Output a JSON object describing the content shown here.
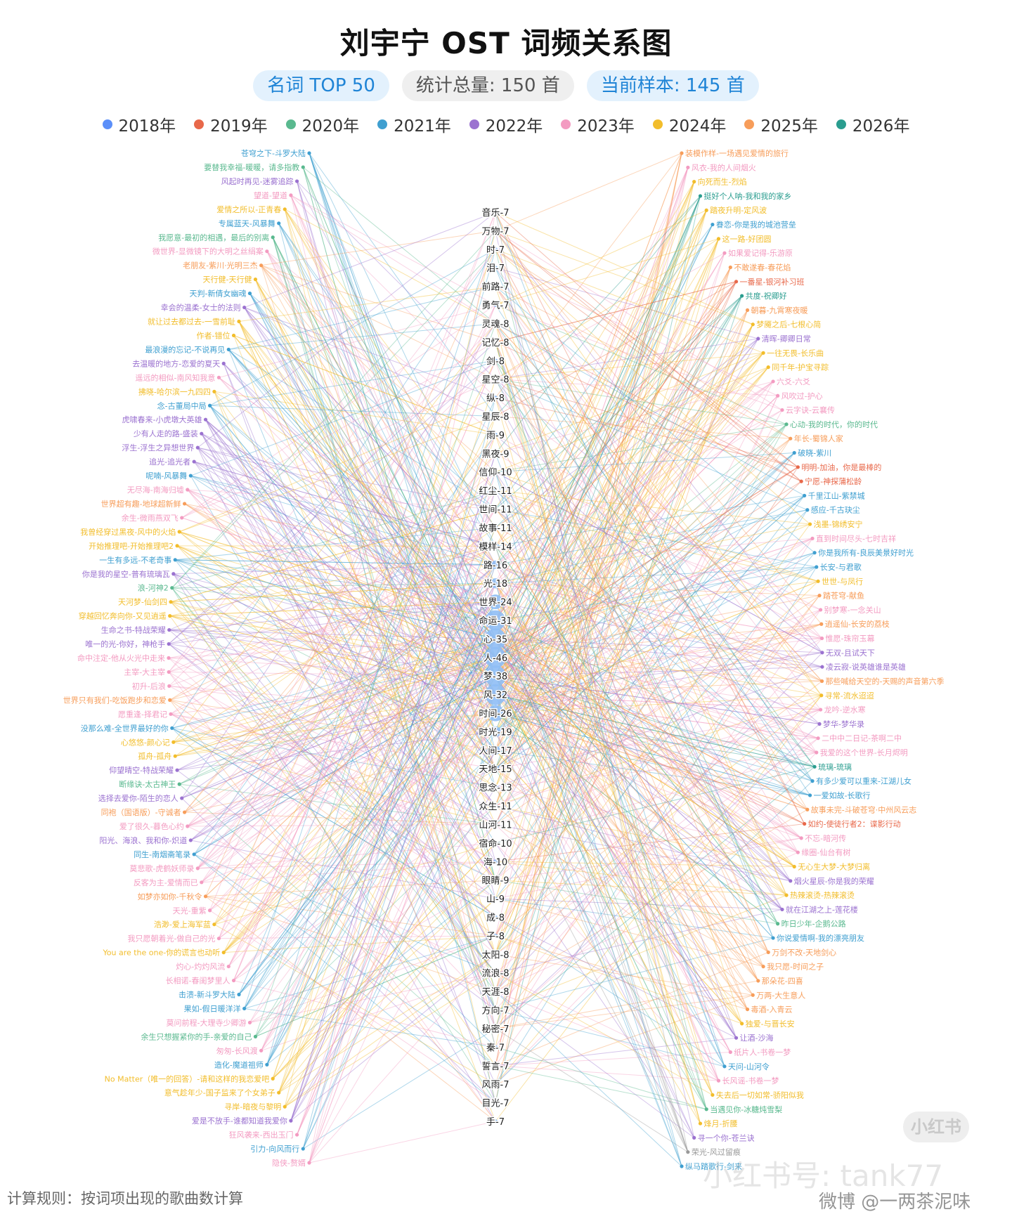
{
  "title": "刘宇宁 OST 词频关系图",
  "pills": {
    "top": "名词 TOP 50",
    "total": "统计总量: 150 首",
    "sample": "当前样本: 145 首"
  },
  "legend": [
    {
      "label": "2018年",
      "color": "#5b8ff9"
    },
    {
      "label": "2019年",
      "color": "#e8684a"
    },
    {
      "label": "2020年",
      "color": "#5ab98f"
    },
    {
      "label": "2021年",
      "color": "#3f9fd0"
    },
    {
      "label": "2022年",
      "color": "#9b72d0"
    },
    {
      "label": "2023年",
      "color": "#f39bc1"
    },
    {
      "label": "2024年",
      "color": "#f2bd2b"
    },
    {
      "label": "2025年",
      "color": "#f79d5a"
    },
    {
      "label": "2026年",
      "color": "#2a9d8f"
    }
  ],
  "words": [
    "音乐-7",
    "万物-7",
    "时-7",
    "泪-7",
    "前路-7",
    "勇气-7",
    "灵魂-8",
    "记忆-8",
    "剑-8",
    "星空-8",
    "纵-8",
    "星辰-8",
    "雨-9",
    "黑夜-9",
    "信仰-10",
    "红尘-11",
    "世间-11",
    "故事-11",
    "模样-14",
    "路-16",
    "光-18",
    "世界-24",
    "命运-31",
    "心-35",
    "人-46",
    "梦-38",
    "风-32",
    "时间-26",
    "时光-19",
    "人间-17",
    "天地-15",
    "思念-13",
    "众生-11",
    "山河-11",
    "宿命-10",
    "海-10",
    "眼睛-9",
    "山-9",
    "成-8",
    "子-8",
    "太阳-8",
    "流浪-8",
    "天涯-8",
    "方向-7",
    "秘密-7",
    "秦-7",
    "誓言-7",
    "风雨-7",
    "目光-7",
    "手-7"
  ],
  "left_songs": [
    [
      "苍穹之下-斗罗大陆",
      3
    ],
    [
      "要替我幸福-暖暖，请多指教",
      2
    ],
    [
      "风起时再见-迷雾追踪",
      4
    ],
    [
      "望道-望道",
      5
    ],
    [
      "爱情之所以-正青春",
      6
    ],
    [
      "专属蓝天-风暴舞",
      3
    ],
    [
      "我愿意-最初的相遇，最后的别离",
      2
    ],
    [
      "微世界-显微镜下的大明之丝绢案",
      5
    ],
    [
      "老朋友-紫川·光明三杰",
      7
    ],
    [
      "天行健-天行健",
      6
    ],
    [
      "天判-新倩女幽魂",
      3
    ],
    [
      "幸会的温柔-女士的法则",
      4
    ],
    [
      "就让过去都过去-一雪前耻",
      6
    ],
    [
      "作者-错位",
      6
    ],
    [
      "最浪漫的忘记-不说再见",
      3
    ],
    [
      "去温暖的地方-恋爱的夏天",
      4
    ],
    [
      "遥远的相似-南风知我意",
      5
    ],
    [
      "拂晓-哈尔滨一九四四",
      6
    ],
    [
      "念-古董局中局",
      3
    ],
    [
      "虎啸春来-小虎墩大英雄",
      4
    ],
    [
      "少有人走的路-盛装",
      4
    ],
    [
      "浮生-浮生之异想世界",
      4
    ],
    [
      "追光-追光者",
      4
    ],
    [
      "呢喃-风暴舞",
      3
    ],
    [
      "无尽海-南海归墟",
      5
    ],
    [
      "世界超有趣-地球超新鲜",
      7
    ],
    [
      "余生-微雨燕双飞",
      5
    ],
    [
      "我曾经穿过黑夜-风中的火焰",
      6
    ],
    [
      "开始推理吧-开始推理吧2",
      6
    ],
    [
      "一生有多远-不老奇事",
      3
    ],
    [
      "你是我的星空-普有琉璃瓦",
      4
    ],
    [
      "浪-河神2",
      2
    ],
    [
      "天河梦-仙剑四",
      6
    ],
    [
      "穿越回忆奔向你-又见逍遥",
      6
    ],
    [
      "生命之书-特战荣耀",
      4
    ],
    [
      "唯一的光-你好，神枪手",
      4
    ],
    [
      "命中注定-他从火光中走来",
      5
    ],
    [
      "主宰-大主宰",
      5
    ],
    [
      "初升-后浪",
      5
    ],
    [
      "世界只有我们-吃饭跑步和恋爱",
      7
    ],
    [
      "愿重逢-择君记",
      5
    ],
    [
      "没那么难-全世界最好的你",
      3
    ],
    [
      "心悠悠-颜心记",
      6
    ],
    [
      "孤舟-孤舟",
      6
    ],
    [
      "仰望晴空-特战荣耀",
      4
    ],
    [
      "断缘诀-太古神王",
      2
    ],
    [
      "选择去爱你-陌生的恋人",
      4
    ],
    [
      "同袍（国语版）-守诚者",
      7
    ],
    [
      "爱了很久-暮色心约",
      5
    ],
    [
      "阳光、海浪、我和你-炽道",
      4
    ],
    [
      "同生-南烟斋笔录",
      3
    ],
    [
      "莫悲歌-虎鹤妖师录",
      5
    ],
    [
      "反客为主-爱情而已",
      5
    ],
    [
      "如梦亦如你-千秋令",
      7
    ],
    [
      "天光-重紫",
      5
    ],
    [
      "浩渺-爱上海军蓝",
      6
    ],
    [
      "我只愿朝着光-做自己的光",
      5
    ],
    [
      "You are the one-你的谎言也动听",
      6
    ],
    [
      "灼心-灼灼风流",
      5
    ],
    [
      "长相诺-春闺梦里人",
      5
    ],
    [
      "击溃-新斗罗大陆",
      3
    ],
    [
      "果如-假日暖洋洋",
      3
    ],
    [
      "莫问前程-大理寺少卿游",
      5
    ],
    [
      "余生只想握紧你的手-亲爱的自己",
      2
    ],
    [
      "匆匆-长风渡",
      5
    ],
    [
      "造化-魔道祖师",
      3
    ],
    [
      "No Matter（唯一的回答）-请和这样的我恋爱吧",
      6
    ],
    [
      "意气趁年少-国子监来了个女弟子",
      6
    ],
    [
      "寻岸-暗夜与黎明",
      6
    ],
    [
      "爱是不放手-谁都知道我爱你",
      4
    ],
    [
      "狂风袭来-西出玉门",
      5
    ],
    [
      "引力-向风而行",
      3
    ],
    [
      "隐侠-赘婿",
      5
    ]
  ],
  "right_songs": [
    [
      "装模作样-一场遇见爱情的旅行",
      7
    ],
    [
      "风衣-我的人间烟火",
      5
    ],
    [
      "向死而生-烈焰",
      6
    ],
    [
      "挺好个人呐-我和我的家乡",
      8
    ],
    [
      "踏夜升明-定风波",
      6
    ],
    [
      "眷恋-你是我的城池营垒",
      3
    ],
    [
      "这一路-好团圆",
      6
    ],
    [
      "如果爱记得-乐游原",
      5
    ],
    [
      "不敢遂春-春花焰",
      7
    ],
    [
      "一番星-银河补习班",
      1
    ],
    [
      "共度-祝卿好",
      8
    ],
    [
      "朝暮-九霄寒夜暖",
      7
    ],
    [
      "梦魇之后-七根心简",
      6
    ],
    [
      "清晖-卿卿日常",
      4
    ],
    [
      "一往无畏-长乐曲",
      6
    ],
    [
      "同千年-护宝寻踪",
      6
    ],
    [
      "六爻-六爻",
      5
    ],
    [
      "风吹过-护心",
      5
    ],
    [
      "云字诀-云襄传",
      5
    ],
    [
      "心动-我的时代，你的时代",
      2
    ],
    [
      "年长-蜀锦人家",
      7
    ],
    [
      "破晓-紫川",
      3
    ],
    [
      "明明-加油，你是最棒的",
      1
    ],
    [
      "宁愿-神探蒲松龄",
      1
    ],
    [
      "千里江山-紫禁城",
      3
    ],
    [
      "感应-千古玦尘",
      3
    ],
    [
      "浅墨-锦绣安宁",
      6
    ],
    [
      "直到时间尽头-七时吉祥",
      5
    ],
    [
      "你是我所有-良辰美景好时光",
      3
    ],
    [
      "长安-与君歌",
      3
    ],
    [
      "世世-与凤行",
      6
    ],
    [
      "踏苍穹-献鱼",
      7
    ],
    [
      "别梦寒-一念关山",
      5
    ],
    [
      "逍遥仙-长安的荔枝",
      7
    ],
    [
      "惟愿-珠帘玉幕",
      5
    ],
    [
      "无双-且试天下",
      4
    ],
    [
      "凌云寂-说英雄谁是英雄",
      4
    ],
    [
      "那些喊给天空的-天赐的声音第六季",
      7
    ],
    [
      "寻常-流水迢迢",
      6
    ],
    [
      "龙吟-逆水寒",
      5
    ],
    [
      "梦华-梦华录",
      4
    ],
    [
      "二中中二日记-茶啊二中",
      5
    ],
    [
      "我爱的这个世界-长月烬明",
      5
    ],
    [
      "琉璃-琉璃",
      8
    ],
    [
      "有多少爱可以重来-江湖儿女",
      3
    ],
    [
      "一爱如故-长歌行",
      3
    ],
    [
      "故事未完-斗破苍穹·中州风云志",
      7
    ],
    [
      "如约-使徒行者2：谍影行动",
      1
    ],
    [
      "不忘-暗河传",
      5
    ],
    [
      "缘圈-仙台有树",
      5
    ],
    [
      "无心生大梦-大梦归离",
      6
    ],
    [
      "烟火星辰-你是我的荣耀",
      4
    ],
    [
      "热辣滚烫-热辣滚烫",
      6
    ],
    [
      "就在江湖之上-莲花楼",
      4
    ],
    [
      "昨日少年-企鹅公路",
      2
    ],
    [
      "你说爱情啊-我的漂亮朋友",
      3
    ],
    [
      "万剑不改-天地剑心",
      7
    ],
    [
      "我只愿-时间之子",
      7
    ],
    [
      "那朵花-四喜",
      7
    ],
    [
      "万两-大生意人",
      7
    ],
    [
      "毒酒-入青云",
      7
    ],
    [
      "独爱-与晋长安",
      6
    ],
    [
      "让酒-沙海",
      4
    ],
    [
      "纸片人-书卷一梦",
      5
    ],
    [
      "天问-山河令",
      3
    ],
    [
      "长风谣-书卷一梦",
      5
    ],
    [
      "失去后一切如常-骄阳似我",
      6
    ],
    [
      "当遇见你-冰糖炖雪梨",
      2
    ],
    [
      "烽月-折腰",
      6
    ],
    [
      "寻一个你-苍兰诀",
      4
    ],
    [
      "荣光-风过留痕",
      9
    ],
    [
      "纵马踏歌行-剑来",
      3
    ]
  ],
  "footer": {
    "rule": "计算规则：按词项出现的歌曲数计算",
    "watermark_badge": "小红书",
    "watermark_id": "小红书号: tank77",
    "watermark_weibo": "微博 @一两茶泥味"
  }
}
